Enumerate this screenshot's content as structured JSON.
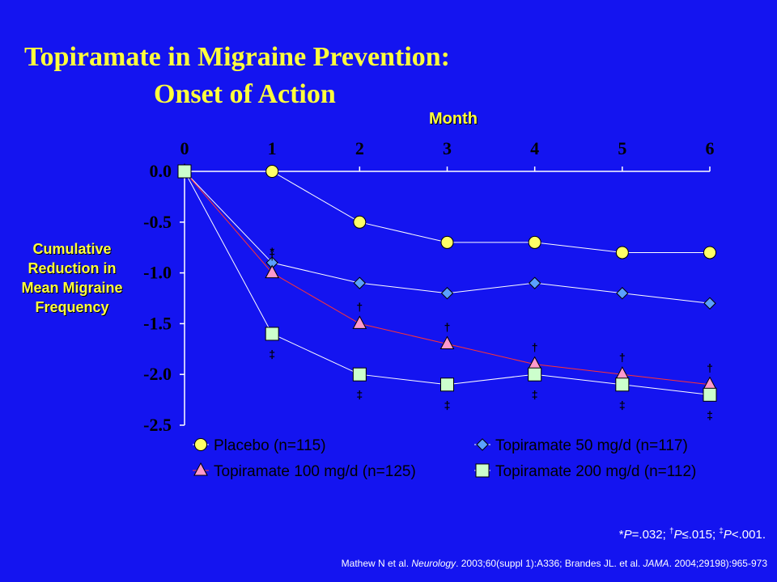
{
  "title_line1": "Topiramate in Migraine Prevention:",
  "title_line2": "Onset of Action",
  "footnote": {
    "a_mark": "*",
    "a_p": "P",
    "a_text": "=.032; ",
    "b_mark": "†",
    "b_p": "P",
    "b_text": "≤.015; ",
    "c_mark": "‡",
    "c_p": "P",
    "c_text": "<.001."
  },
  "citation": {
    "a": "Mathew N et al. ",
    "journal1": "Neurology",
    "b": ". 2003;60(suppl 1):A336; Brandes JL. et al. ",
    "journal2": "JAMA",
    "c": ". 2004;29198):965-973"
  },
  "chart_data": {
    "type": "line",
    "xlabel": "Month",
    "ylabel": "Cumulative Reduction in Mean Migraine Frequency",
    "x": [
      0,
      1,
      2,
      3,
      4,
      5,
      6
    ],
    "x_tick_labels": [
      "0",
      "1",
      "2",
      "3",
      "4",
      "5",
      "6"
    ],
    "y_tick_labels": [
      "0.0",
      "-0.5",
      "-1.0",
      "-1.5",
      "-2.0",
      "-2.5"
    ],
    "ylim": [
      -2.5,
      0.0
    ],
    "x_axis_position": "top",
    "grid": false,
    "legend_position": "bottom",
    "series": [
      {
        "name": "Placebo (n=115)",
        "values": [
          0,
          0,
          -0.5,
          -0.7,
          -0.7,
          -0.8,
          -0.8
        ],
        "marker": "circle",
        "color": "#ffff66",
        "line_color": "#ffffff",
        "annotations": [
          "",
          "",
          "",
          "",
          "",
          "",
          ""
        ]
      },
      {
        "name": "Topiramate 50 mg/d (n=117)",
        "values": [
          0,
          -0.9,
          -1.1,
          -1.2,
          -1.1,
          -1.2,
          -1.3
        ],
        "marker": "diamond",
        "color": "#5aa0ff",
        "line_color": "#ffffff",
        "annotations": [
          "",
          "*",
          "",
          "",
          "",
          "",
          ""
        ]
      },
      {
        "name": "Topiramate 100 mg/d (n=125)",
        "values": [
          0,
          -1.0,
          -1.5,
          -1.7,
          -1.9,
          -2.0,
          -2.1
        ],
        "marker": "triangle",
        "color": "#ff99cc",
        "line_color": "#ff3333",
        "annotations": [
          "",
          "†",
          "†",
          "†",
          "†",
          "†",
          "†"
        ]
      },
      {
        "name": "Topiramate  200 mg/d (n=112)",
        "values": [
          0,
          -1.6,
          -2.0,
          -2.1,
          -2.0,
          -2.1,
          -2.2
        ],
        "marker": "square",
        "color": "#ccffcc",
        "line_color": "#ffffff",
        "annotations": [
          "",
          "‡",
          "‡",
          "‡",
          "‡",
          "‡",
          "‡"
        ]
      }
    ]
  }
}
